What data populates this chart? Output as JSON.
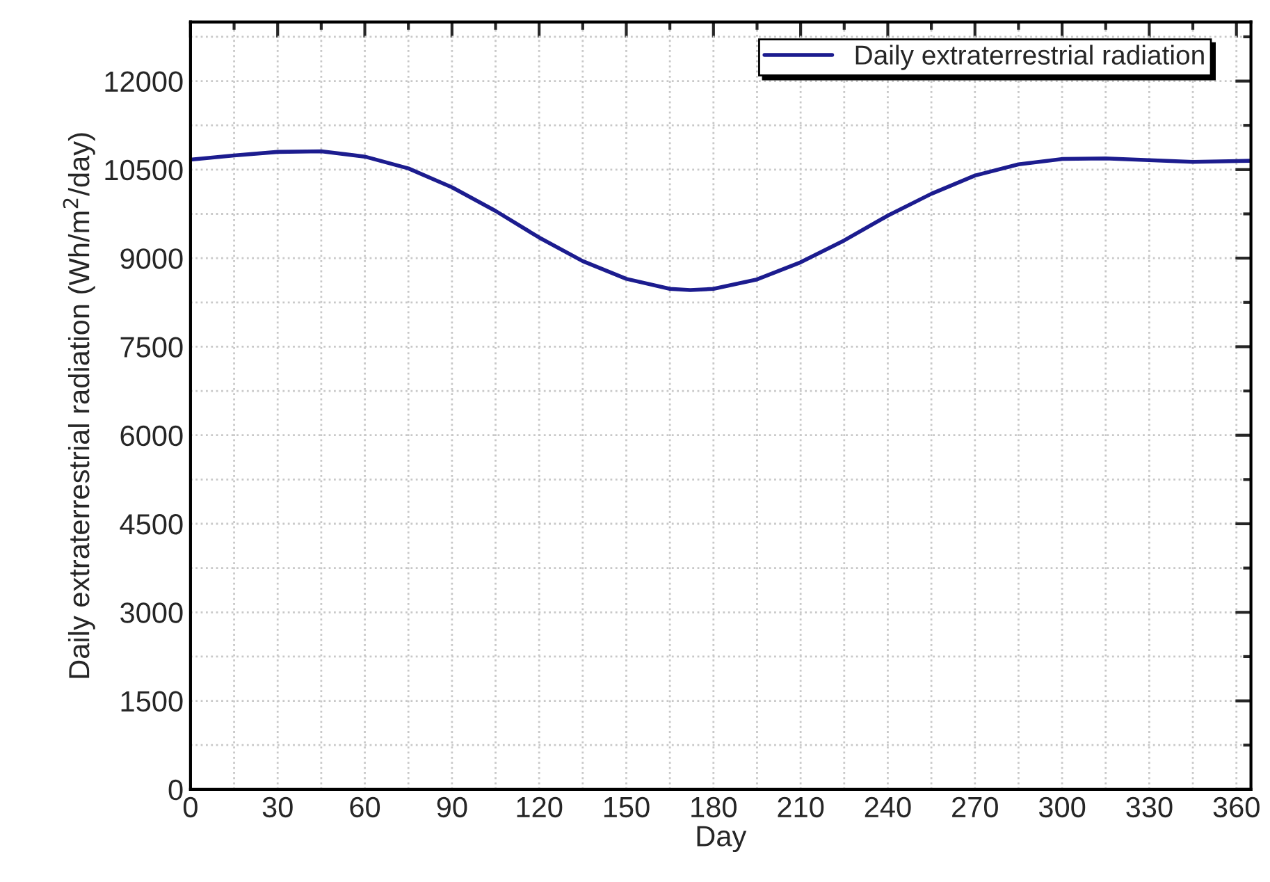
{
  "chart_data": {
    "type": "line",
    "xlabel": "Day",
    "ylabel": "Daily extraterrestrial radiation (Wh/m$^{2}$/day)",
    "x": [
      0,
      15,
      30,
      45,
      60,
      75,
      90,
      105,
      120,
      135,
      150,
      165,
      172,
      180,
      195,
      210,
      225,
      240,
      255,
      270,
      285,
      300,
      315,
      330,
      345,
      365
    ],
    "series": [
      {
        "name": "Daily extraterrestrial radiation",
        "color": "#1c1c8f",
        "values": [
          10670,
          10740,
          10800,
          10810,
          10720,
          10520,
          10200,
          9800,
          9350,
          8950,
          8650,
          8480,
          8460,
          8480,
          8640,
          8930,
          9300,
          9720,
          10090,
          10400,
          10590,
          10680,
          10690,
          10660,
          10630,
          10650
        ]
      }
    ],
    "xlim": [
      0,
      365
    ],
    "xticks": [
      0,
      30,
      60,
      90,
      120,
      150,
      180,
      210,
      240,
      270,
      300,
      330,
      360
    ],
    "ylim": [
      0,
      13000
    ],
    "yticks": [
      0,
      1500,
      3000,
      4500,
      6000,
      7500,
      9000,
      10500,
      12000
    ],
    "grid": true,
    "legend": "top right",
    "line_style": "solid",
    "marker": "none"
  }
}
